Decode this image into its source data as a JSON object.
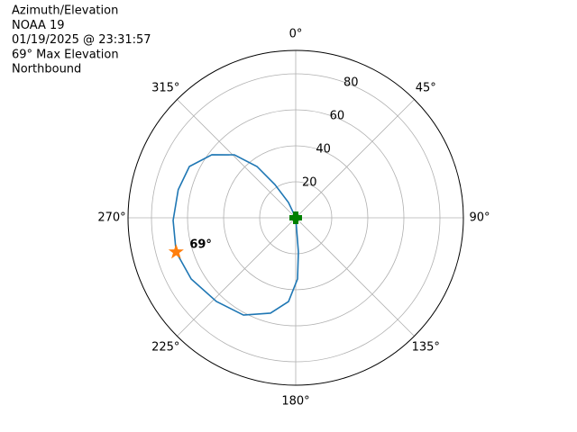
{
  "chart_data": {
    "type": "polar",
    "title_lines": [
      "Azimuth/Elevation",
      "NOAA 19",
      "01/19/2025 @ 23:31:57",
      "69° Max Elevation",
      "Northbound"
    ],
    "theta_direction": "clockwise",
    "theta_zero": "N",
    "rlim": [
      0,
      93
    ],
    "rticks": [
      20,
      40,
      60,
      80
    ],
    "thetaticks": [
      {
        "value": 0,
        "label": "0°"
      },
      {
        "value": 45,
        "label": "45°"
      },
      {
        "value": 90,
        "label": "90°"
      },
      {
        "value": 135,
        "label": "135°"
      },
      {
        "value": 180,
        "label": "180°"
      },
      {
        "value": 225,
        "label": "225°"
      },
      {
        "value": 270,
        "label": "270°"
      },
      {
        "value": 315,
        "label": "315°"
      }
    ],
    "grid": true,
    "series": [
      {
        "color": "#1f77b4",
        "theta": [
          180,
          175.5,
          178.3,
          184.9,
          194.8,
          208.2,
          223.4,
          239.6,
          254,
          268.8,
          283.5,
          295.8,
          307,
          315.8,
          323,
          328,
          334.8,
          340
        ],
        "r": [
          0,
          19,
          34,
          46.7,
          54.8,
          61.3,
          64,
          67.2,
          69,
          68,
          67,
          65.5,
          58.2,
          48.8,
          35.7,
          21.8,
          9.4,
          0
        ]
      }
    ],
    "star": {
      "theta": 254,
      "r": 69,
      "label": "69°",
      "color": "#ff7f0e"
    },
    "endpoints": {
      "color": "#008000",
      "theta": [
        180,
        340
      ],
      "r": [
        0,
        0
      ]
    }
  }
}
